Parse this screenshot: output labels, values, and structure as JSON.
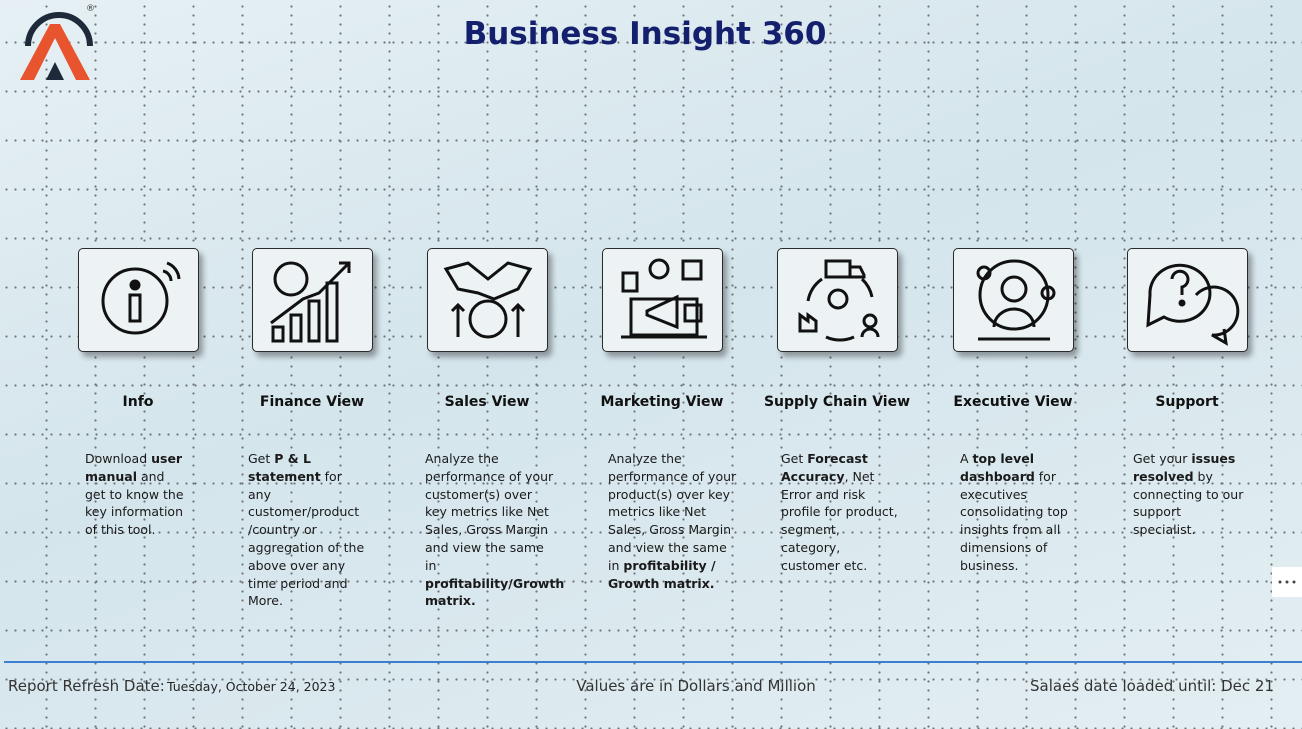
{
  "header": {
    "title": "Business Insight 360",
    "logo_mark": "®"
  },
  "cards": [
    {
      "title": "Info",
      "description": [
        {
          "text": "Download ",
          "bold": false
        },
        {
          "text": "user manual",
          "bold": true
        },
        {
          "text": " and get to know the key information of this tool.",
          "bold": false
        }
      ]
    },
    {
      "title": "Finance View",
      "description": [
        {
          "text": "Get ",
          "bold": false
        },
        {
          "text": "P & L statement",
          "bold": true
        },
        {
          "text": " for any customer/product /country or aggregation of the above over any time period and More.",
          "bold": false
        }
      ]
    },
    {
      "title": "Sales View",
      "description": [
        {
          "text": "Analyze the performance of your customer(s) over key metrics like Net Sales, Gross Margin and view the same in ",
          "bold": false
        },
        {
          "text": "profitability/Growth matrix.",
          "bold": true
        }
      ]
    },
    {
      "title": "Marketing View",
      "description": [
        {
          "text": "Analyze the performance of your product(s) over key metrics like Net Sales, Gross Margin and view the same in ",
          "bold": false
        },
        {
          "text": "profitability / Growth matrix.",
          "bold": true
        }
      ]
    },
    {
      "title": "Supply Chain View",
      "description": [
        {
          "text": "Get ",
          "bold": false
        },
        {
          "text": "Forecast Accuracy",
          "bold": true
        },
        {
          "text": ", Net Error and risk profile for product, segment, category, customer etc.",
          "bold": false
        }
      ]
    },
    {
      "title": "Executive View",
      "description": [
        {
          "text": "A ",
          "bold": false
        },
        {
          "text": "top level dashboard",
          "bold": true
        },
        {
          "text": " for executives consolidating top insights from all dimensions of business.",
          "bold": false
        }
      ]
    },
    {
      "title": "Support",
      "description": [
        {
          "text": "Get your ",
          "bold": false
        },
        {
          "text": "issues resolved",
          "bold": true
        },
        {
          "text": " by connecting to our support specialist.",
          "bold": false
        }
      ]
    }
  ],
  "footer": {
    "refresh_label": "Report Refresh Date:",
    "refresh_date": "Tuesday, October 24, 2023",
    "units_note": "Values are in Dollars and Million",
    "sales_loaded": "Salaes date loaded until: Dec 21"
  }
}
